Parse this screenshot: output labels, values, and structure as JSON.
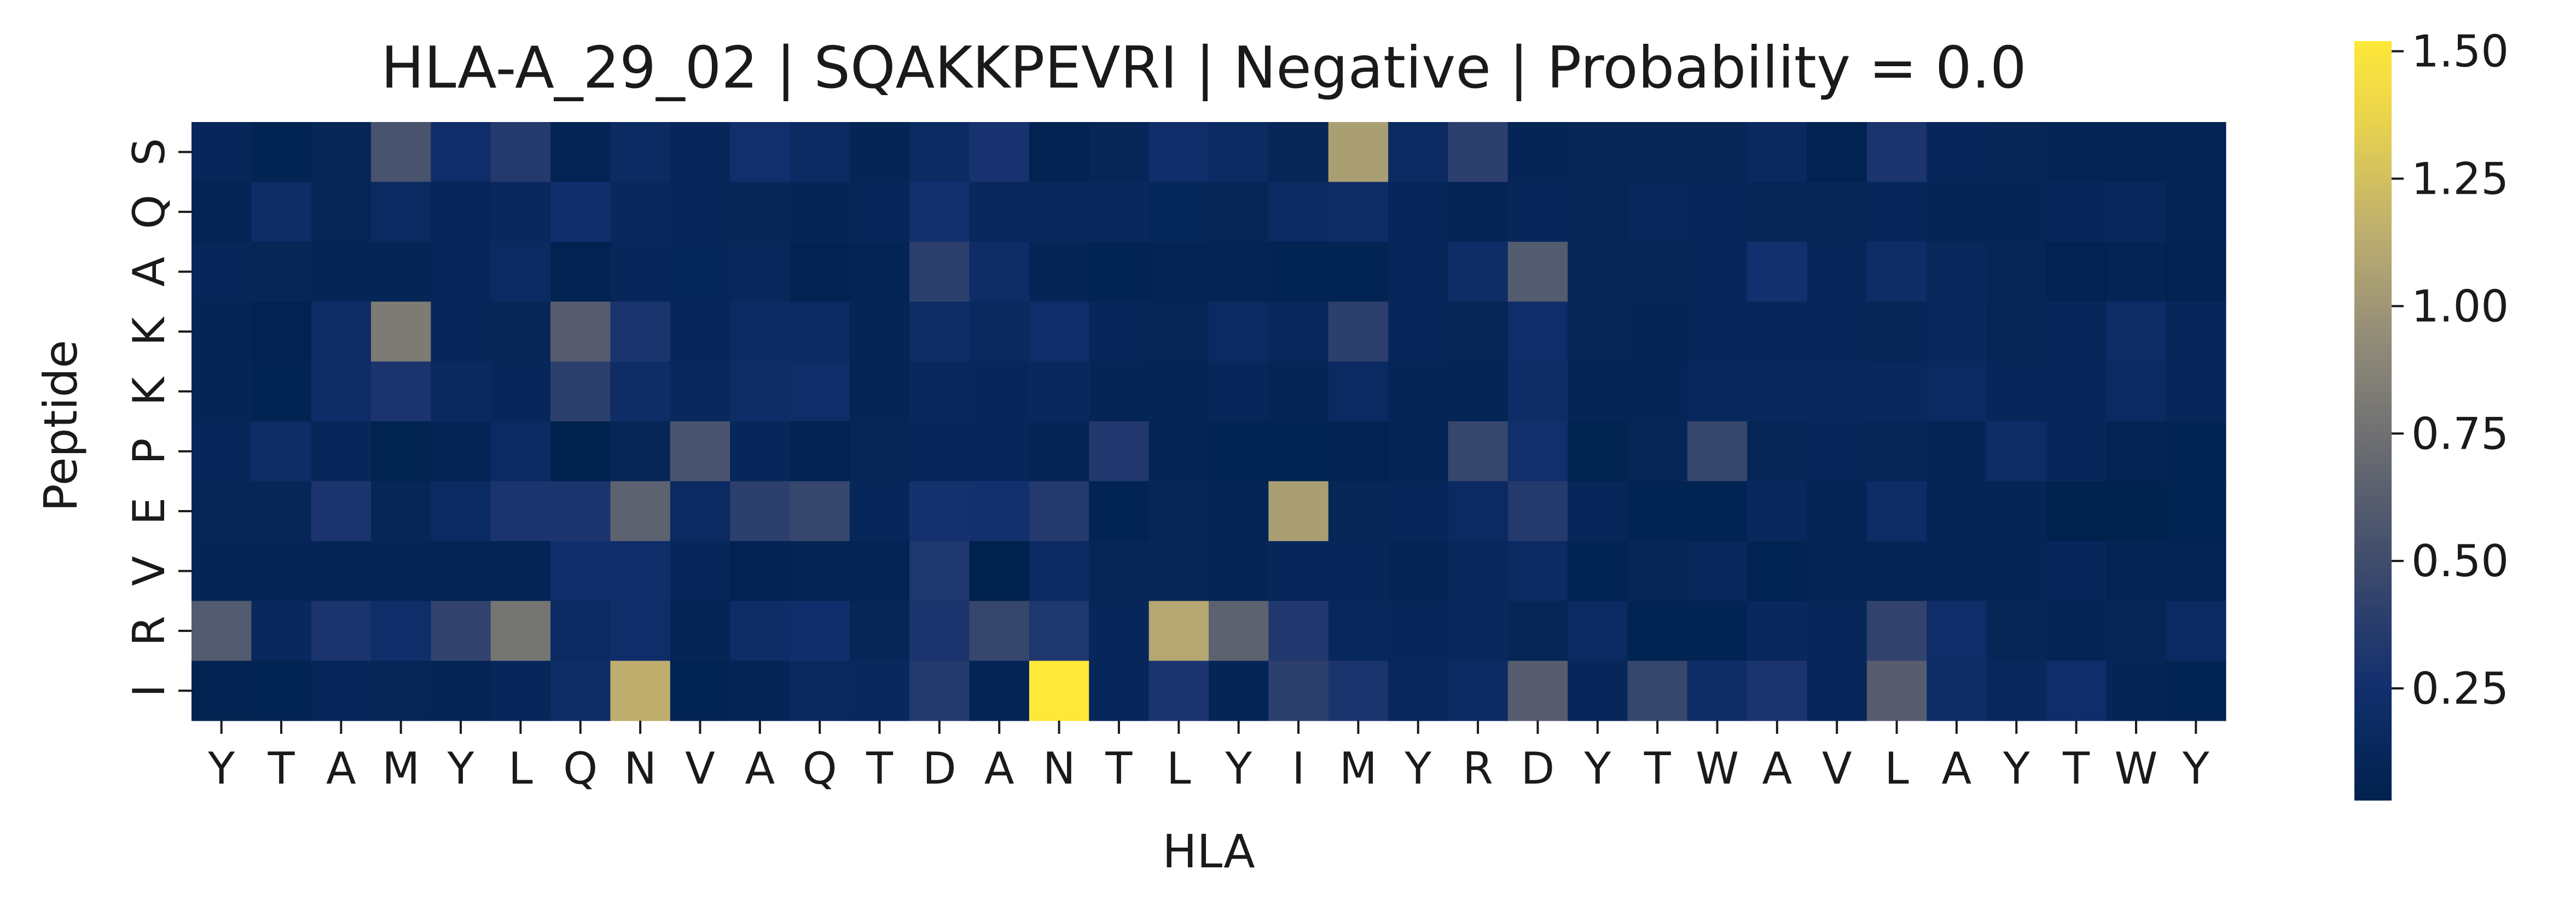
{
  "chart_data": {
    "type": "heatmap",
    "title": "HLA-A_29_02 | SQAKKPEVRI | Negative | Probability = 0.0",
    "xlabel": "HLA",
    "ylabel": "Peptide",
    "x_categories": [
      "Y",
      "T",
      "A",
      "M",
      "Y",
      "L",
      "Q",
      "N",
      "V",
      "A",
      "Q",
      "T",
      "D",
      "A",
      "N",
      "T",
      "L",
      "Y",
      "I",
      "M",
      "Y",
      "R",
      "D",
      "Y",
      "T",
      "W",
      "A",
      "V",
      "L",
      "A",
      "Y",
      "T",
      "W",
      "Y"
    ],
    "y_categories": [
      "S",
      "Q",
      "A",
      "K",
      "K",
      "P",
      "E",
      "V",
      "R",
      "I"
    ],
    "colorbar": {
      "min": 0.03,
      "max": 1.52,
      "ticks": [
        0.25,
        0.5,
        0.75,
        1.0,
        1.25,
        1.5
      ],
      "tick_labels": [
        "0.25",
        "0.50",
        "0.75",
        "1.00",
        "1.25",
        "1.50"
      ],
      "colormap": "cividis"
    },
    "values": [
      [
        0.12,
        0.06,
        0.1,
        0.55,
        0.22,
        0.35,
        0.07,
        0.18,
        0.12,
        0.25,
        0.17,
        0.08,
        0.18,
        0.28,
        0.05,
        0.1,
        0.22,
        0.18,
        0.1,
        1.05,
        0.18,
        0.4,
        0.08,
        0.1,
        0.1,
        0.1,
        0.15,
        0.05,
        0.3,
        0.12,
        0.1,
        0.07,
        0.07,
        0.07
      ],
      [
        0.07,
        0.2,
        0.1,
        0.16,
        0.12,
        0.14,
        0.23,
        0.14,
        0.12,
        0.1,
        0.08,
        0.12,
        0.25,
        0.13,
        0.13,
        0.14,
        0.11,
        0.1,
        0.16,
        0.2,
        0.12,
        0.09,
        0.12,
        0.1,
        0.13,
        0.12,
        0.1,
        0.1,
        0.12,
        0.09,
        0.09,
        0.12,
        0.13,
        0.07
      ],
      [
        0.12,
        0.1,
        0.08,
        0.09,
        0.12,
        0.17,
        0.05,
        0.12,
        0.11,
        0.13,
        0.05,
        0.07,
        0.4,
        0.2,
        0.08,
        0.06,
        0.07,
        0.07,
        0.06,
        0.06,
        0.12,
        0.2,
        0.6,
        0.1,
        0.1,
        0.12,
        0.26,
        0.12,
        0.2,
        0.13,
        0.1,
        0.05,
        0.07,
        0.05
      ],
      [
        0.08,
        0.05,
        0.2,
        0.82,
        0.12,
        0.1,
        0.62,
        0.3,
        0.12,
        0.18,
        0.18,
        0.08,
        0.2,
        0.15,
        0.22,
        0.12,
        0.1,
        0.17,
        0.13,
        0.4,
        0.12,
        0.1,
        0.22,
        0.1,
        0.08,
        0.12,
        0.12,
        0.12,
        0.1,
        0.14,
        0.1,
        0.12,
        0.2,
        0.12
      ],
      [
        0.09,
        0.06,
        0.2,
        0.3,
        0.15,
        0.12,
        0.4,
        0.2,
        0.14,
        0.2,
        0.22,
        0.09,
        0.14,
        0.12,
        0.14,
        0.09,
        0.09,
        0.12,
        0.09,
        0.17,
        0.09,
        0.09,
        0.2,
        0.09,
        0.09,
        0.14,
        0.14,
        0.14,
        0.14,
        0.17,
        0.12,
        0.12,
        0.16,
        0.12
      ],
      [
        0.12,
        0.2,
        0.12,
        0.04,
        0.08,
        0.16,
        0.03,
        0.1,
        0.55,
        0.12,
        0.05,
        0.1,
        0.12,
        0.12,
        0.08,
        0.33,
        0.07,
        0.06,
        0.06,
        0.05,
        0.07,
        0.45,
        0.25,
        0.04,
        0.1,
        0.45,
        0.1,
        0.12,
        0.1,
        0.09,
        0.2,
        0.12,
        0.07,
        0.06
      ],
      [
        0.1,
        0.1,
        0.3,
        0.1,
        0.17,
        0.3,
        0.3,
        0.65,
        0.17,
        0.4,
        0.45,
        0.12,
        0.27,
        0.26,
        0.35,
        0.06,
        0.1,
        0.07,
        1.05,
        0.1,
        0.12,
        0.16,
        0.35,
        0.12,
        0.06,
        0.06,
        0.14,
        0.08,
        0.2,
        0.09,
        0.08,
        0.03,
        0.03,
        0.06
      ],
      [
        0.09,
        0.09,
        0.09,
        0.08,
        0.07,
        0.07,
        0.24,
        0.22,
        0.12,
        0.05,
        0.07,
        0.07,
        0.32,
        0.03,
        0.18,
        0.1,
        0.1,
        0.08,
        0.12,
        0.12,
        0.08,
        0.13,
        0.18,
        0.06,
        0.1,
        0.13,
        0.06,
        0.08,
        0.08,
        0.08,
        0.09,
        0.12,
        0.07,
        0.07
      ],
      [
        0.6,
        0.14,
        0.3,
        0.22,
        0.42,
        0.78,
        0.16,
        0.22,
        0.08,
        0.2,
        0.24,
        0.1,
        0.3,
        0.45,
        0.32,
        0.12,
        1.1,
        0.65,
        0.33,
        0.13,
        0.12,
        0.14,
        0.1,
        0.17,
        0.06,
        0.06,
        0.14,
        0.12,
        0.42,
        0.22,
        0.1,
        0.08,
        0.1,
        0.16
      ],
      [
        0.05,
        0.06,
        0.12,
        0.1,
        0.07,
        0.12,
        0.2,
        1.15,
        0.06,
        0.09,
        0.15,
        0.14,
        0.35,
        0.07,
        1.52,
        0.12,
        0.3,
        0.09,
        0.4,
        0.3,
        0.13,
        0.18,
        0.62,
        0.12,
        0.45,
        0.2,
        0.3,
        0.12,
        0.62,
        0.2,
        0.13,
        0.22,
        0.09,
        0.06
      ]
    ]
  }
}
